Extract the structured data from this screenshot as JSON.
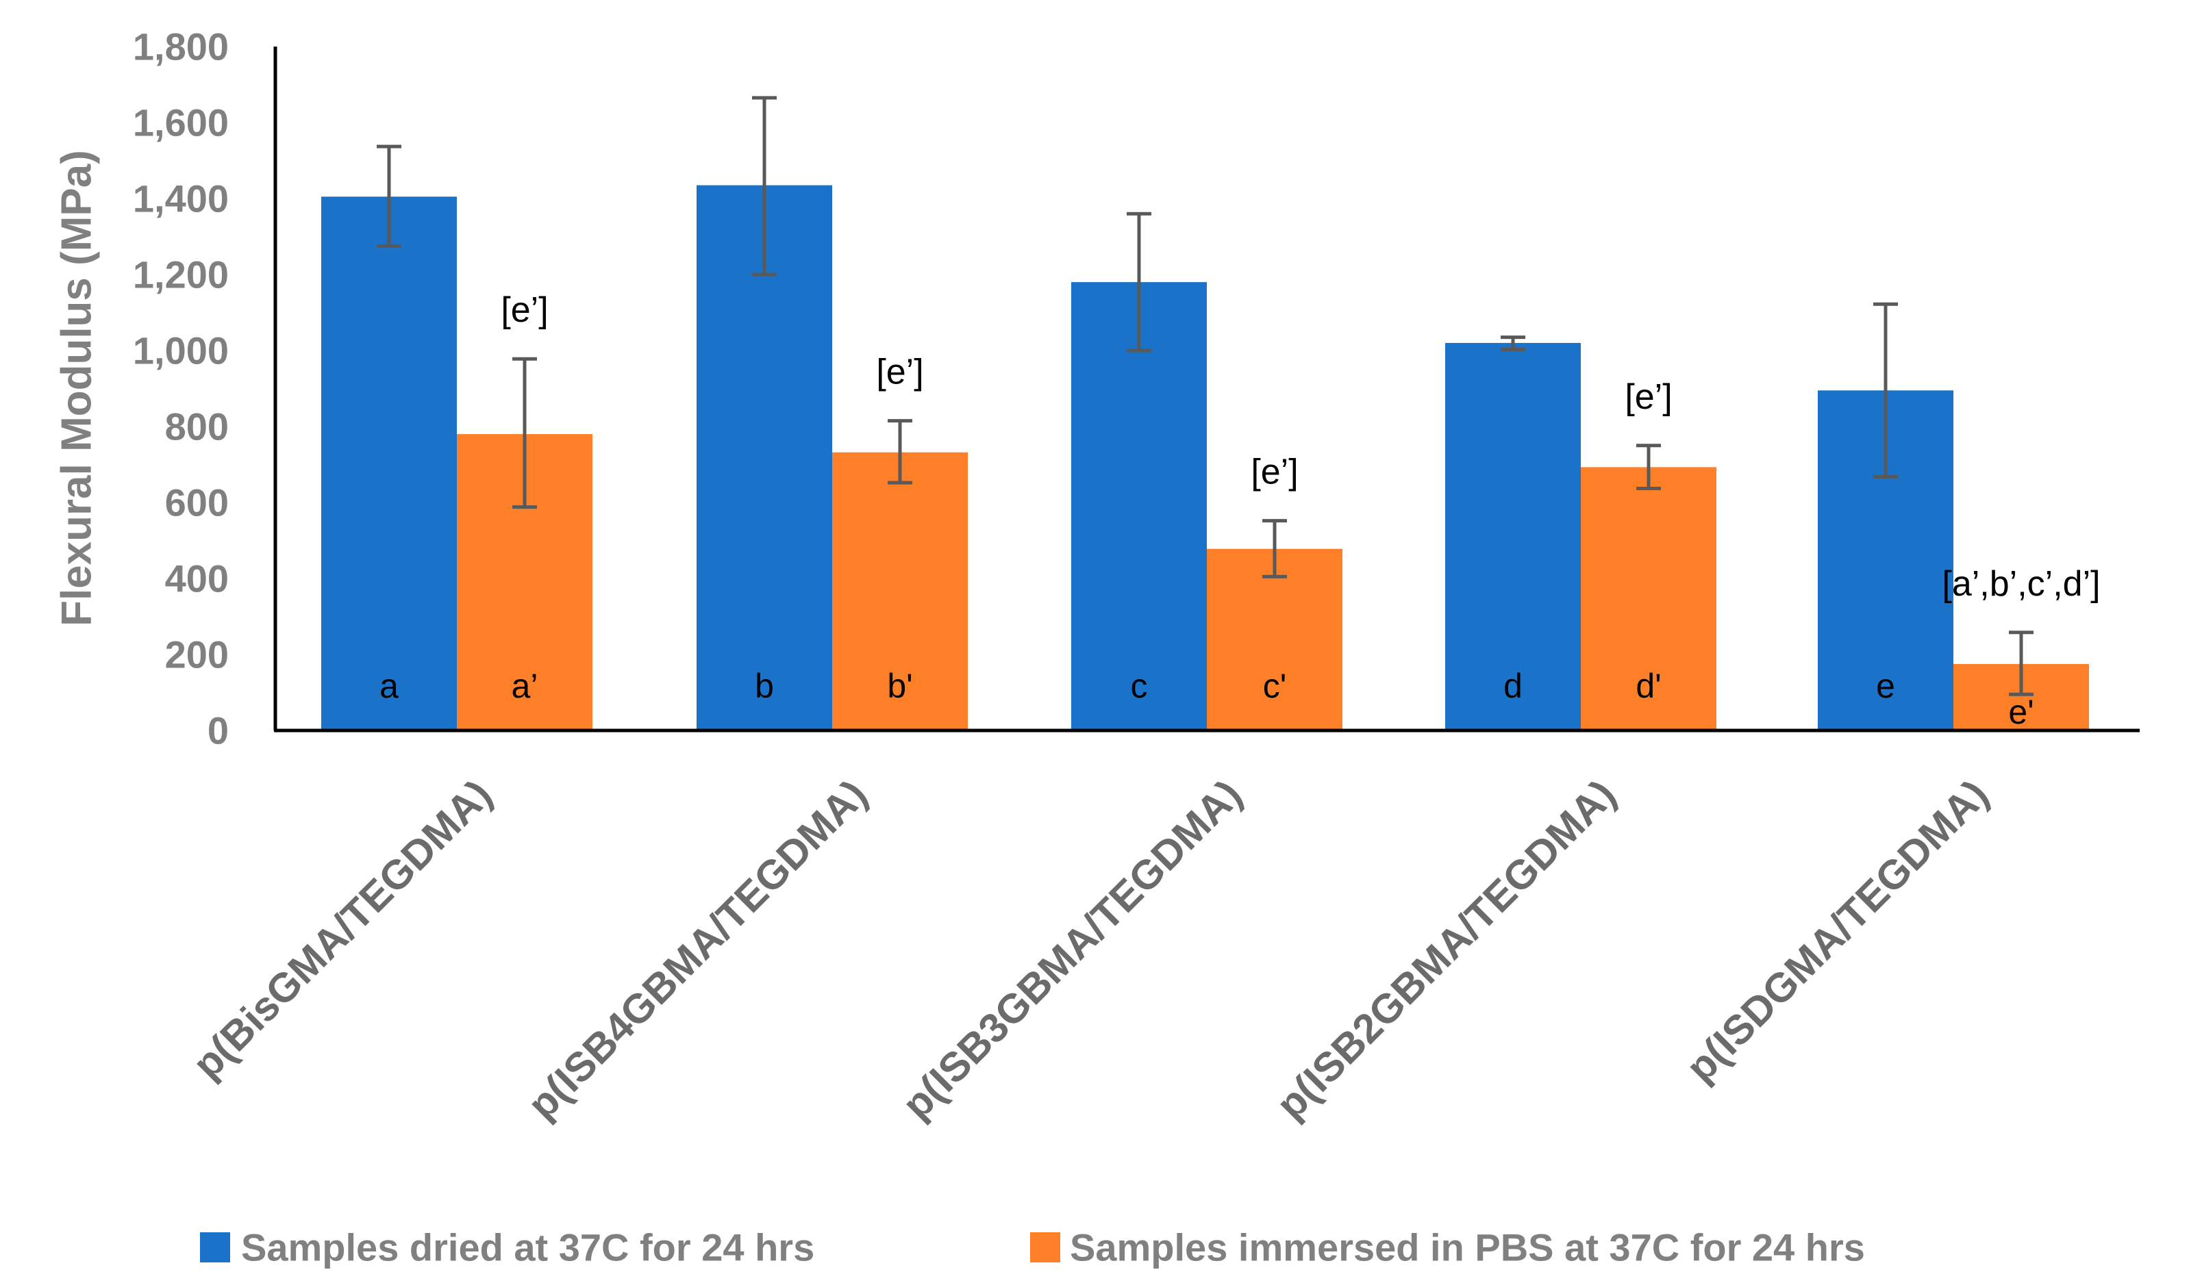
{
  "chart_data": {
    "type": "bar",
    "title": "",
    "xlabel": "",
    "ylabel": "Flexural Modulus (MPa)",
    "ylim": [
      0,
      1800
    ],
    "yticks": [
      0,
      200,
      400,
      600,
      800,
      1000,
      1200,
      1400,
      1600,
      1800
    ],
    "ytick_labels": [
      "0",
      "200",
      "400",
      "600",
      "800",
      "1,000",
      "1,200",
      "1,400",
      "1,600",
      "1,800"
    ],
    "grid": false,
    "legend_position": "bottom",
    "categories": [
      "p(BisGMA/TEGDMA)",
      "p(ISB4GBMA/TEGDMA)",
      "p(ISB3GBMA/TEGDMA)",
      "p(ISB2GBMA/TEGDMA)",
      "p(ISDGMA/TEGDMA)"
    ],
    "series": [
      {
        "name": "Samples dried at 37C for 24 hrs",
        "color": "#1a73c8",
        "values": [
          1405,
          1435,
          1180,
          1020,
          895
        ],
        "error_low": [
          1275,
          1200,
          1000,
          1003,
          668
        ],
        "error_high": [
          1537,
          1665,
          1360,
          1035,
          1122
        ],
        "bar_labels": [
          "a",
          "b",
          "c",
          "d",
          "e"
        ],
        "annotations": [
          "",
          "",
          "",
          "",
          ""
        ]
      },
      {
        "name": "Samples immersed in PBS at 37C for 24 hrs",
        "color": "#fd7f28",
        "values": [
          780,
          732,
          478,
          693,
          175
        ],
        "error_low": [
          588,
          652,
          405,
          637,
          95
        ],
        "error_high": [
          978,
          815,
          552,
          750,
          258
        ],
        "bar_labels": [
          "a’",
          "b'",
          "c'",
          "d'",
          "e'"
        ],
        "annotations": [
          "[e’]",
          "[e’]",
          "[e’]",
          "[e’]",
          "[a’,b’,c’,d’]"
        ]
      }
    ]
  }
}
